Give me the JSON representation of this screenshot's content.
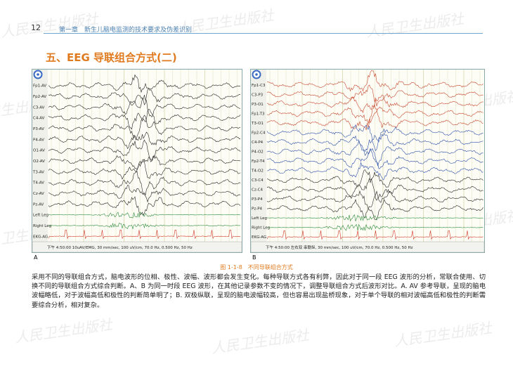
{
  "header": {
    "page_number": "12",
    "chapter": "第一章　新生儿脑电监测的技术要求及伪差识别"
  },
  "section_title": "五、EEG 导联组合方式(二)",
  "watermark": "人民卫生出版社",
  "figures": [
    {
      "label": "A",
      "channels": [
        "Fp1-AV",
        "Fp2-AV",
        "C3-AV",
        "C4-AV",
        "P3-AV",
        "P4-AV",
        "O1-AV",
        "O2-AV",
        "T3-AV",
        "T4-AV",
        "Cz-AV",
        "Pz-AV",
        "Left Leg",
        "Right Leg",
        "EKG-AG"
      ],
      "footer": "下午 4:50:00 10uAV/EMG, 30 mm/sec, 100 uV/cm, 70.0 Hz, 0.500 Hz, 50 Hz"
    },
    {
      "label": "B",
      "channels": [
        "Fp1-C3",
        "C3-P3",
        "P3-O1",
        "Fp1-T3",
        "T3-O1",
        "Fp2-C4",
        "C4-P4",
        "P4-O2",
        "Fp2-T4",
        "T4-O2",
        "C3-C4",
        "Cz-C4",
        "P3-P4",
        "Pz-P4",
        "Left Leg",
        "Right Leg",
        "EKG-AG"
      ],
      "footer": "下午 4:50:00 左右双 串联纵, 30 mm/sec, 100 uV/cm, 70.0 Hz, 0.500 Hz, 50 Hz"
    }
  ],
  "caption": "图 1-1-8　不同导联组合方式",
  "body": "采用不同的导联组合方式，脑电波形的位相、极性、波幅、波形都会发生变化。每种导联方式各有利弊，因此对于同一段 EEG 波形的分析，常联合使用、切换不同的导联组合方式综合判断。A、B 为同一时段 EEG 波形，在其他记录参数不变的情况下，调整导联组合方式后波形对比。A. AV 参考导联，呈现的脑电波幅略低，对于波幅高低和极性的判断简单明了；B. 双极纵联，呈现的脑电波幅较高，但也容易出现盐桥现象，对于单个导联的相对波幅高低和极性的判断需要综合分析，相对复杂。"
}
